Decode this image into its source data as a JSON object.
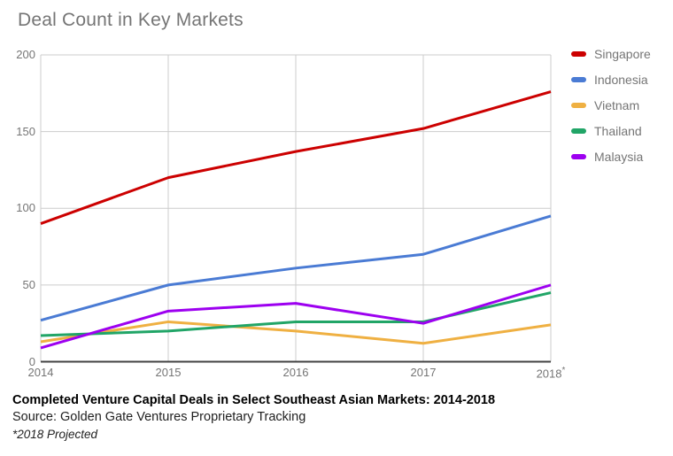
{
  "title": "Deal Count in Key Markets",
  "chart_data": {
    "type": "line",
    "x": [
      "2014",
      "2015",
      "2016",
      "2017",
      "2018*"
    ],
    "x_end": {
      "year": "2018",
      "mark": "*"
    },
    "series": [
      {
        "name": "Singapore",
        "color": "#cc0000",
        "values": [
          90,
          120,
          137,
          152,
          176
        ]
      },
      {
        "name": "Indonesia",
        "color": "#4a7bd4",
        "values": [
          27,
          50,
          61,
          70,
          95
        ]
      },
      {
        "name": "Vietnam",
        "color": "#efb042",
        "values": [
          13,
          26,
          20,
          12,
          24
        ]
      },
      {
        "name": "Thailand",
        "color": "#21a567",
        "values": [
          17,
          20,
          26,
          26,
          45
        ]
      },
      {
        "name": "Malaysia",
        "color": "#9d00f0",
        "values": [
          9,
          33,
          38,
          25,
          50
        ]
      }
    ],
    "ylim": [
      0,
      200
    ],
    "yticks": [
      0,
      50,
      100,
      150,
      200
    ],
    "grid": true,
    "legend_position": "right"
  },
  "caption": {
    "title": "Completed Venture Capital Deals in Select Southeast Asian Markets: 2014-2018",
    "source": "Source: Golden Gate Ventures Proprietary Tracking",
    "note": "*2018 Projected"
  }
}
